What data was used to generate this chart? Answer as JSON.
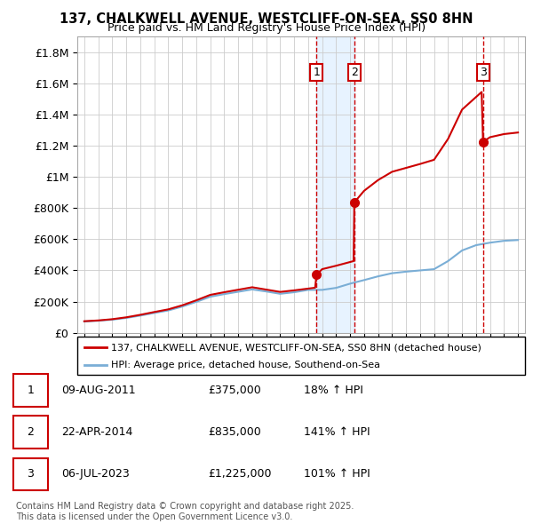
{
  "title1": "137, CHALKWELL AVENUE, WESTCLIFF-ON-SEA, SS0 8HN",
  "title2": "Price paid vs. HM Land Registry's House Price Index (HPI)",
  "legend1": "137, CHALKWELL AVENUE, WESTCLIFF-ON-SEA, SS0 8HN (detached house)",
  "legend2": "HPI: Average price, detached house, Southend-on-Sea",
  "footer": "Contains HM Land Registry data © Crown copyright and database right 2025.\nThis data is licensed under the Open Government Licence v3.0.",
  "sale_labels": [
    "1",
    "2",
    "3"
  ],
  "sale_dates": [
    "09-AUG-2011",
    "22-APR-2014",
    "06-JUL-2023"
  ],
  "sale_prices": [
    "£375,000",
    "£835,000",
    "£1,225,000"
  ],
  "sale_hpi_pct": [
    "18% ↑ HPI",
    "141% ↑ HPI",
    "101% ↑ HPI"
  ],
  "sale_years": [
    2011.6,
    2014.3,
    2023.5
  ],
  "sale_price_vals": [
    375000,
    835000,
    1225000
  ],
  "background_color": "#ffffff",
  "plot_bg_color": "#ffffff",
  "grid_color": "#cccccc",
  "red_color": "#cc0000",
  "blue_color": "#7aaed6",
  "shade_color": "#ddeeff",
  "ylim_max": 1900000,
  "xlim_start": 1994.5,
  "xlim_end": 2026.5,
  "years_hpi": [
    1995,
    1996,
    1997,
    1998,
    1999,
    2000,
    2001,
    2002,
    2003,
    2004,
    2005,
    2006,
    2007,
    2008,
    2009,
    2010,
    2011,
    2012,
    2013,
    2014,
    2015,
    2016,
    2017,
    2018,
    2019,
    2020,
    2021,
    2022,
    2023,
    2024,
    2025,
    2026
  ],
  "hpi_values": [
    72000,
    77000,
    84000,
    95000,
    110000,
    127000,
    143000,
    168000,
    198000,
    231000,
    248000,
    263000,
    278000,
    265000,
    250000,
    260000,
    275000,
    275000,
    288000,
    315000,
    338000,
    362000,
    382000,
    392000,
    400000,
    408000,
    460000,
    528000,
    562000,
    578000,
    590000,
    595000
  ],
  "years_red": [
    1995,
    1996,
    1997,
    1998,
    1999,
    2000,
    2001,
    2002,
    2003,
    2004,
    2005,
    2006,
    2007,
    2008,
    2009,
    2010,
    2011.5,
    2011.6,
    2011.65,
    2012,
    2013,
    2014.25,
    2014.3,
    2014.35,
    2015,
    2016,
    2017,
    2018,
    2019,
    2020,
    2021,
    2022,
    2023.4,
    2023.5,
    2023.55,
    2024,
    2025,
    2026
  ],
  "red_values": [
    74000,
    79000,
    87000,
    99000,
    115000,
    133000,
    150000,
    176000,
    208000,
    243000,
    260000,
    276000,
    292000,
    277000,
    262000,
    272000,
    289000,
    375000,
    377000,
    408000,
    430000,
    460000,
    835000,
    842000,
    911000,
    980000,
    1033000,
    1058000,
    1083000,
    1110000,
    1244000,
    1432000,
    1545000,
    1225000,
    1228000,
    1255000,
    1275000,
    1285000
  ]
}
